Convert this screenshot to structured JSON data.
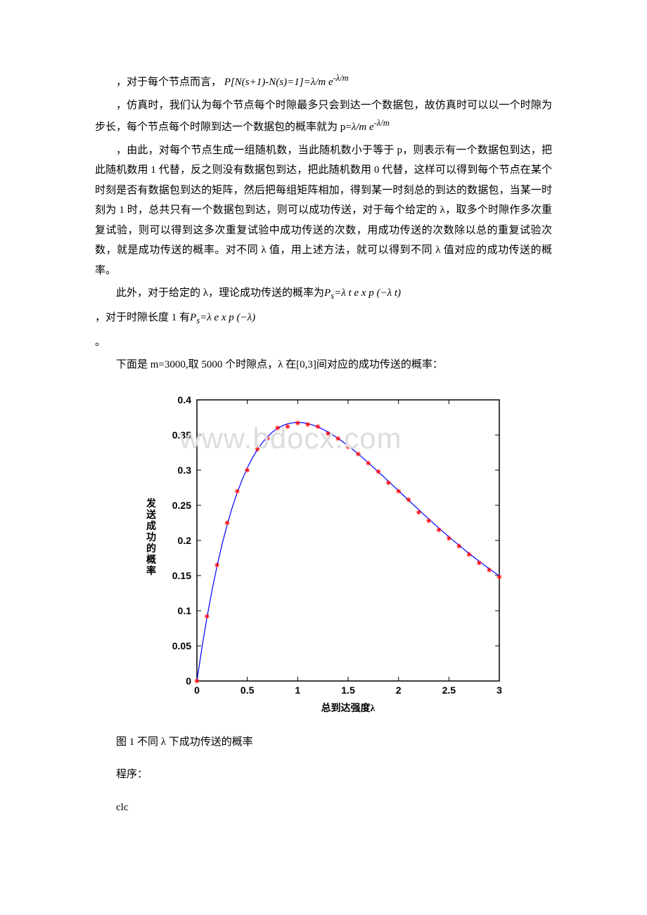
{
  "paragraphs": {
    "p1_prefix": "，对于每个节点而言，",
    "p1_formula": "P[N(s+1)-N(s)=1]=λ/me^(-λ/m)",
    "p2": "，仿真时，我们认为每个节点每个时隙最多只会到达一个数据包，故仿真时可以以一个时隙为步长，每个节点每个时隙到达一个数据包的概率就为 p=",
    "p2_formula": "λ/me^(-λ/m)",
    "p3": "，由此，对每个节点生成一组随机数，当此随机数小于等于 p，则表示有一个数据包到达，把此随机数用 1 代替，反之则没有数据包到达，把此随机数用 0 代替，这样可以得到每个节点在某个时刻是否有数据包到达的矩阵，然后把每组矩阵相加，得到某一时刻总的到达的数据包，当某一时刻为 1 时，总共只有一个数据包到达，则可以成功传送，对于每个给定的 λ，取多个时隙作多次重复试验，则可以得到这多次重复试验中成功传送的次数，用成功传送的次数除以总的重复试验次数，就是成功传送的概率。对不同 λ 值，用上述方法，就可以得到不同 λ 值对应的成功传送的概率。",
    "p4_prefix": "此外，对于给定的 λ，理论成功传送的概率为",
    "p4_formula": "Ps=λtexp(-λt)",
    "p5_prefix": "，对于时隙长度 1 有",
    "p5_formula": "Ps=λexp(-λ)",
    "p6": "。",
    "p7": "下面是 m=3000,取 5000 个时隙点，λ 在[0,3]间对应的成功传送的概率："
  },
  "chart": {
    "type": "line-scatter",
    "xlabel": "总到达强度λ",
    "ylabel": "发送成功的概率",
    "xlim": [
      0,
      3
    ],
    "ylim": [
      0,
      0.4
    ],
    "xticks": [
      0,
      0.5,
      1,
      1.5,
      2,
      2.5,
      3
    ],
    "yticks": [
      0,
      0.05,
      0.1,
      0.15,
      0.2,
      0.25,
      0.3,
      0.35,
      0.4
    ],
    "line_color": "#0000ff",
    "marker_color": "#ff0000",
    "background_color": "#ffffff",
    "axis_color": "#000000",
    "label_fontsize": 14,
    "tick_fontsize": 14,
    "line_width": 1.2,
    "marker_size": 7,
    "line_points": [
      [
        0,
        0
      ],
      [
        0.05,
        0.0476
      ],
      [
        0.1,
        0.0905
      ],
      [
        0.15,
        0.1291
      ],
      [
        0.2,
        0.1637
      ],
      [
        0.25,
        0.1947
      ],
      [
        0.3,
        0.2222
      ],
      [
        0.35,
        0.2466
      ],
      [
        0.4,
        0.2681
      ],
      [
        0.45,
        0.2869
      ],
      [
        0.5,
        0.3033
      ],
      [
        0.55,
        0.3173
      ],
      [
        0.6,
        0.3293
      ],
      [
        0.65,
        0.3393
      ],
      [
        0.7,
        0.3476
      ],
      [
        0.75,
        0.3543
      ],
      [
        0.8,
        0.3595
      ],
      [
        0.85,
        0.3633
      ],
      [
        0.9,
        0.3659
      ],
      [
        0.95,
        0.3674
      ],
      [
        1.0,
        0.3679
      ],
      [
        1.05,
        0.3675
      ],
      [
        1.1,
        0.3662
      ],
      [
        1.15,
        0.3642
      ],
      [
        1.2,
        0.3614
      ],
      [
        1.25,
        0.3581
      ],
      [
        1.3,
        0.3543
      ],
      [
        1.35,
        0.3499
      ],
      [
        1.4,
        0.3452
      ],
      [
        1.45,
        0.34
      ],
      [
        1.5,
        0.3347
      ],
      [
        1.55,
        0.329
      ],
      [
        1.6,
        0.323
      ],
      [
        1.65,
        0.3169
      ],
      [
        1.7,
        0.3106
      ],
      [
        1.75,
        0.3041
      ],
      [
        1.8,
        0.2975
      ],
      [
        1.85,
        0.2909
      ],
      [
        1.9,
        0.2842
      ],
      [
        1.95,
        0.2774
      ],
      [
        2.0,
        0.2707
      ],
      [
        2.05,
        0.264
      ],
      [
        2.1,
        0.2572
      ],
      [
        2.15,
        0.2506
      ],
      [
        2.2,
        0.2438
      ],
      [
        2.25,
        0.2371
      ],
      [
        2.3,
        0.2306
      ],
      [
        2.35,
        0.2241
      ],
      [
        2.4,
        0.2177
      ],
      [
        2.45,
        0.2114
      ],
      [
        2.5,
        0.2052
      ],
      [
        2.55,
        0.1991
      ],
      [
        2.6,
        0.1931
      ],
      [
        2.65,
        0.1873
      ],
      [
        2.7,
        0.1815
      ],
      [
        2.75,
        0.1759
      ],
      [
        2.8,
        0.1703
      ],
      [
        2.85,
        0.165
      ],
      [
        2.9,
        0.1596
      ],
      [
        2.95,
        0.1545
      ],
      [
        3.0,
        0.1494
      ]
    ],
    "scatter_points": [
      [
        0,
        0
      ],
      [
        0.1,
        0.092
      ],
      [
        0.2,
        0.165
      ],
      [
        0.3,
        0.225
      ],
      [
        0.4,
        0.27
      ],
      [
        0.5,
        0.3
      ],
      [
        0.6,
        0.33
      ],
      [
        0.7,
        0.345
      ],
      [
        0.8,
        0.36
      ],
      [
        0.9,
        0.362
      ],
      [
        1.0,
        0.367
      ],
      [
        1.1,
        0.365
      ],
      [
        1.2,
        0.362
      ],
      [
        1.3,
        0.352
      ],
      [
        1.4,
        0.345
      ],
      [
        1.5,
        0.333
      ],
      [
        1.6,
        0.323
      ],
      [
        1.7,
        0.31
      ],
      [
        1.8,
        0.298
      ],
      [
        1.9,
        0.282
      ],
      [
        2.0,
        0.27
      ],
      [
        2.1,
        0.258
      ],
      [
        2.2,
        0.24
      ],
      [
        2.3,
        0.228
      ],
      [
        2.4,
        0.215
      ],
      [
        2.5,
        0.203
      ],
      [
        2.6,
        0.192
      ],
      [
        2.7,
        0.18
      ],
      [
        2.8,
        0.168
      ],
      [
        2.9,
        0.158
      ],
      [
        3.0,
        0.148
      ]
    ]
  },
  "caption": "图 1 不同 λ 下成功传送的概率",
  "code_label": "程序：",
  "code_line": "clc",
  "watermark": "www.bdocx.com"
}
